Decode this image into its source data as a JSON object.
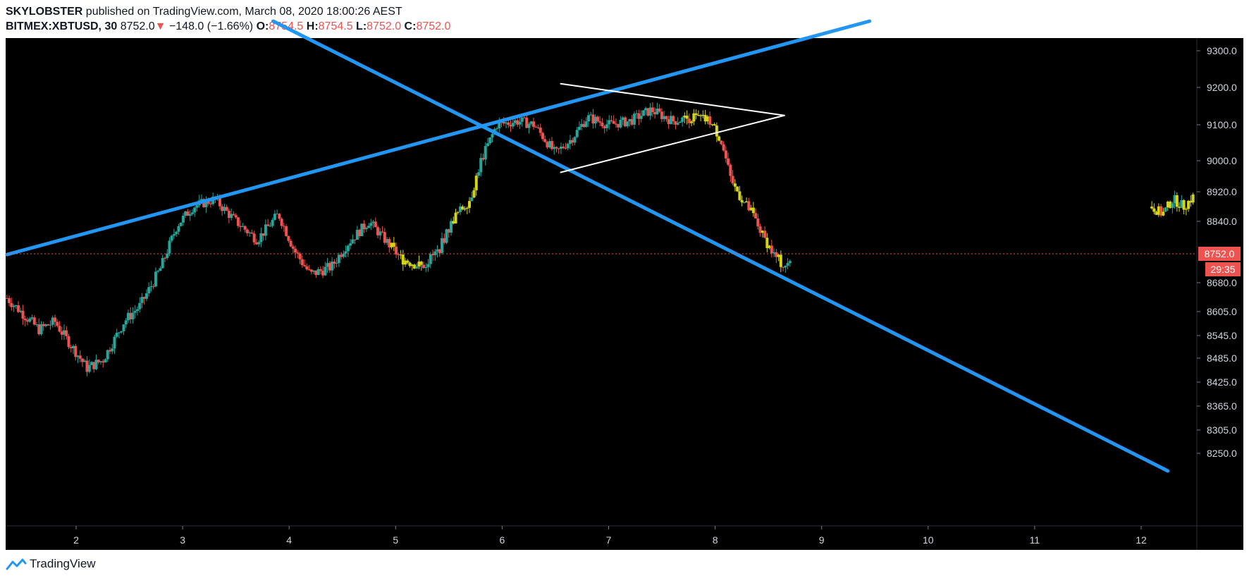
{
  "header": {
    "author": "SKYLOBSTER",
    "published": " published on TradingView.com, March 08, 2020 18:00:26 AEST",
    "symbol": "BITMEX:XBTUSD, 30",
    "last": "8752.0",
    "change_arrow": "▼",
    "change": "−148.0 (−1.66%)",
    "o_label": "O:",
    "o_value": "8754.5",
    "h_label": "H:",
    "h_value": "8754.5",
    "l_label": "L:",
    "l_value": "8752.0",
    "c_label": "C:",
    "c_value": "8752.0"
  },
  "footer": {
    "brand": "TradingView"
  },
  "colors": {
    "background": "#000000",
    "up": "#26a69a",
    "down": "#ef5350",
    "yellow": "#d4d419",
    "trendline": "#2196f3",
    "pennant": "#ffffff",
    "price_line": "#ef5350",
    "tick_text": "#d1d4dc"
  },
  "chart_data": {
    "type": "candlestick",
    "x_axis": {
      "ticks": [
        "2",
        "3",
        "4",
        "5",
        "6",
        "7",
        "8",
        "9",
        "10",
        "11",
        "12"
      ],
      "range": [
        1.35,
        12.5
      ]
    },
    "y_axis": {
      "ticks": [
        "9300.0",
        "9200.0",
        "9100.0",
        "9000.0",
        "8920.0",
        "8840.0",
        "8752.0",
        "8680.0",
        "8605.0",
        "8545.0",
        "8485.0",
        "8425.0",
        "8365.0",
        "8305.0",
        "8250.0"
      ],
      "scale": "nonlinear (log-like)"
    },
    "current_price": "8752.0",
    "countdown": "29:35",
    "price_path": [
      [
        1.35,
        8640
      ],
      [
        1.5,
        8600
      ],
      [
        1.65,
        8560
      ],
      [
        1.8,
        8580
      ],
      [
        1.95,
        8520
      ],
      [
        2.1,
        8460
      ],
      [
        2.25,
        8480
      ],
      [
        2.45,
        8580
      ],
      [
        2.6,
        8620
      ],
      [
        2.8,
        8720
      ],
      [
        2.95,
        8830
      ],
      [
        3.1,
        8880
      ],
      [
        3.3,
        8900
      ],
      [
        3.5,
        8840
      ],
      [
        3.7,
        8790
      ],
      [
        3.9,
        8860
      ],
      [
        4.05,
        8760
      ],
      [
        4.2,
        8700
      ],
      [
        4.4,
        8720
      ],
      [
        4.55,
        8780
      ],
      [
        4.75,
        8840
      ],
      [
        4.9,
        8790
      ],
      [
        5.05,
        8740
      ],
      [
        5.25,
        8720
      ],
      [
        5.4,
        8760
      ],
      [
        5.55,
        8850
      ],
      [
        5.7,
        8900
      ],
      [
        5.8,
        9000
      ],
      [
        5.95,
        9100
      ],
      [
        6.15,
        9110
      ],
      [
        6.3,
        9100
      ],
      [
        6.5,
        9020
      ],
      [
        6.65,
        9060
      ],
      [
        6.8,
        9120
      ],
      [
        7.0,
        9100
      ],
      [
        7.2,
        9110
      ],
      [
        7.4,
        9140
      ],
      [
        7.6,
        9110
      ],
      [
        7.8,
        9120
      ],
      [
        7.95,
        9110
      ],
      [
        8.05,
        9060
      ],
      [
        8.15,
        8950
      ],
      [
        8.25,
        8900
      ],
      [
        8.35,
        8860
      ],
      [
        8.45,
        8800
      ],
      [
        8.55,
        8750
      ],
      [
        8.65,
        8720
      ],
      [
        8.72,
        8752
      ]
    ],
    "yellow_cluster": [
      [
        12.1,
        8880
      ],
      [
        12.2,
        8860
      ],
      [
        12.3,
        8900
      ],
      [
        12.4,
        8880
      ],
      [
        12.5,
        8910
      ]
    ],
    "drawings": [
      {
        "name": "ascending-trendline",
        "from": [
          1.35,
          8750
        ],
        "to": [
          9.45,
          9380
        ]
      },
      {
        "name": "descending-trendline",
        "from": [
          3.85,
          9380
        ],
        "to": [
          12.25,
          8215
        ]
      },
      {
        "name": "pennant-upper",
        "from": [
          6.55,
          9210
        ],
        "to": [
          8.65,
          9125
        ]
      },
      {
        "name": "pennant-lower",
        "from": [
          6.55,
          8970
        ],
        "to": [
          8.65,
          9125
        ]
      }
    ]
  }
}
